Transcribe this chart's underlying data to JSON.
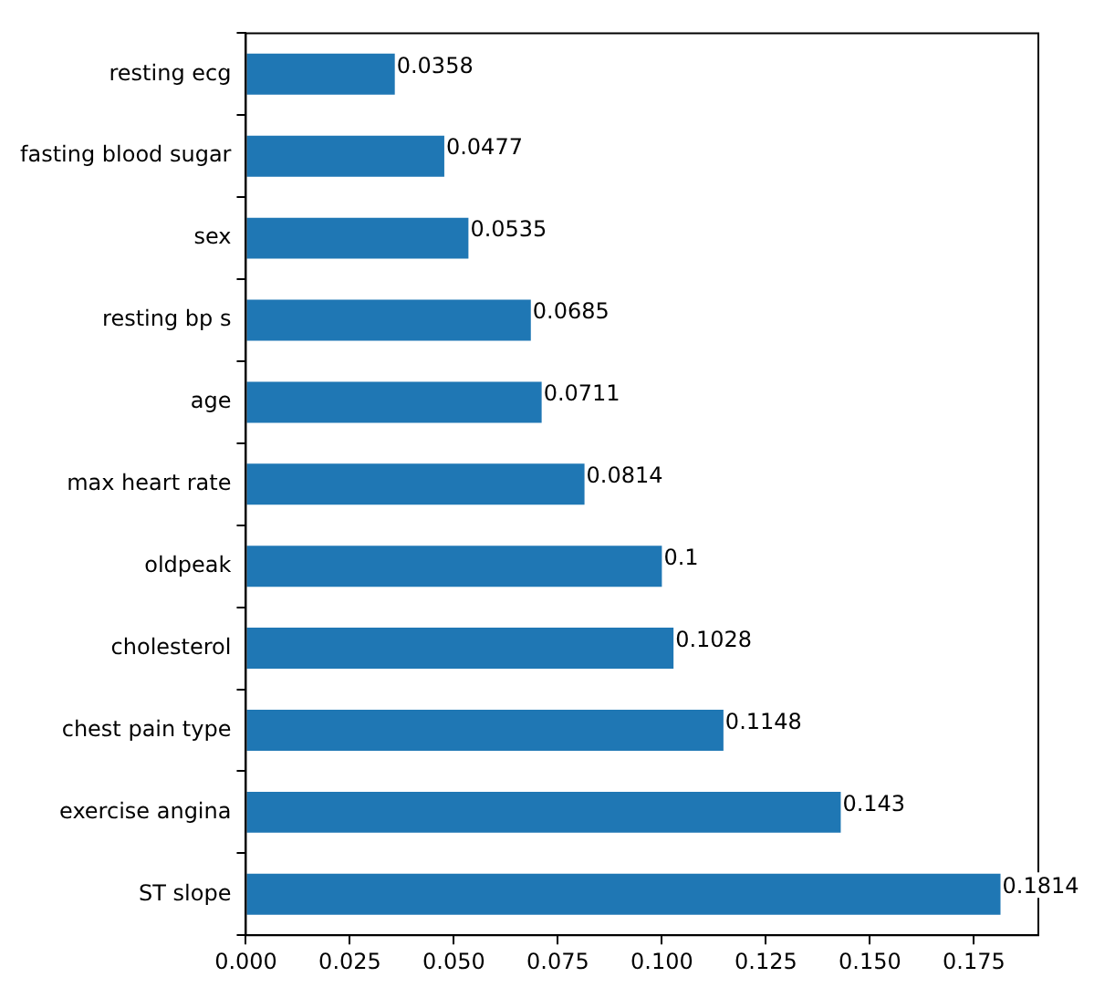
{
  "chart_data": {
    "type": "bar",
    "orientation": "horizontal",
    "categories": [
      "resting ecg",
      "fasting blood sugar",
      "sex",
      "resting bp s",
      "age",
      "max heart rate",
      "oldpeak",
      "cholesterol",
      "chest pain type",
      "exercise angina",
      "ST slope"
    ],
    "values": [
      0.0358,
      0.0477,
      0.0535,
      0.0685,
      0.0711,
      0.0814,
      0.1,
      0.1028,
      0.1148,
      0.143,
      0.1814
    ],
    "color": "#1f77b4",
    "xlim": [
      0,
      0.1905
    ],
    "xticks": [
      {
        "value": 0,
        "label": "0.000"
      },
      {
        "value": 0.025,
        "label": "0.025"
      },
      {
        "value": 0.05,
        "label": "0.050"
      },
      {
        "value": 0.075,
        "label": "0.075"
      },
      {
        "value": 0.1,
        "label": "0.100"
      },
      {
        "value": 0.125,
        "label": "0.125"
      },
      {
        "value": 0.15,
        "label": "0.150"
      },
      {
        "value": 0.175,
        "label": "0.175"
      }
    ],
    "data_labels": true,
    "grid": false,
    "legend": false
  }
}
